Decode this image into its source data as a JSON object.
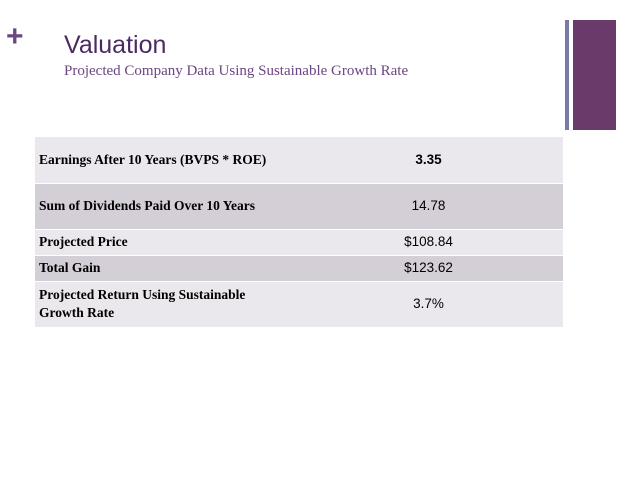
{
  "slide": {
    "plus_glyph": "+",
    "title": "Valuation",
    "subtitle": "Projected Company Data Using Sustainable Growth Rate"
  },
  "table": {
    "rows": [
      {
        "label": "Earnings After 10 Years (BVPS * ROE)",
        "value": "3.35"
      },
      {
        "label": "Sum of Dividends Paid Over 10 Years",
        "value": "14.78"
      },
      {
        "label": "Projected Price",
        "value": "$108.84"
      },
      {
        "label": "Total Gain",
        "value": "$123.62"
      },
      {
        "label": "Projected Return Using Sustainable Growth Rate",
        "value": "3.7%"
      }
    ]
  },
  "colors": {
    "accent_purple": "#6c4584",
    "bar_wide": "#6a3a6a",
    "bar_thin": "#7a7aa8",
    "row_light": "#ebe8ed",
    "row_dark": "#d4ced7"
  }
}
